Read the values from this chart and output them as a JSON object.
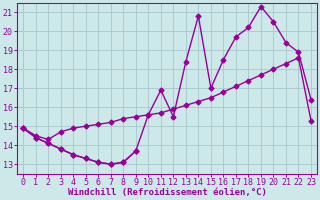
{
  "background_color": "#cce8e8",
  "grid_color": "#aacccc",
  "line_color": "#990099",
  "marker": "D",
  "markersize": 2.5,
  "linewidth": 1.0,
  "xlabel": "Windchill (Refroidissement éolien,°C)",
  "xlabel_fontsize": 6.5,
  "tick_fontsize": 6,
  "xlim": [
    -0.5,
    23.5
  ],
  "ylim": [
    12.5,
    21.5
  ],
  "yticks": [
    13,
    14,
    15,
    16,
    17,
    18,
    19,
    20,
    21
  ],
  "xticks": [
    0,
    1,
    2,
    3,
    4,
    5,
    6,
    7,
    8,
    9,
    10,
    11,
    12,
    13,
    14,
    15,
    16,
    17,
    18,
    19,
    20,
    21,
    22,
    23
  ],
  "line1_x": [
    0,
    1,
    2,
    3,
    4,
    5,
    6,
    7,
    8,
    9
  ],
  "line1_y": [
    14.9,
    14.4,
    14.1,
    13.8,
    13.5,
    13.3,
    13.1,
    13.0,
    13.1,
    13.7
  ],
  "line2_x": [
    0,
    1,
    2,
    3,
    4,
    5,
    6,
    7,
    8,
    9,
    10,
    11,
    12,
    13,
    14,
    15,
    16,
    17,
    18,
    19,
    20,
    21,
    22,
    23
  ],
  "line2_y": [
    14.9,
    14.5,
    14.3,
    14.7,
    14.9,
    15.0,
    15.1,
    15.2,
    15.4,
    15.5,
    15.6,
    15.7,
    15.9,
    16.1,
    16.3,
    16.5,
    16.8,
    17.1,
    17.4,
    17.7,
    18.0,
    18.3,
    18.6,
    15.3
  ],
  "line3_x": [
    0,
    1,
    2,
    3,
    4,
    5,
    6,
    7,
    8,
    9,
    10,
    11,
    12,
    13,
    14,
    15,
    16,
    17,
    18,
    19,
    20,
    21,
    22,
    23
  ],
  "line3_y": [
    14.9,
    14.4,
    14.1,
    13.8,
    13.5,
    13.3,
    13.1,
    13.0,
    13.1,
    13.7,
    15.6,
    16.9,
    15.5,
    18.4,
    20.8,
    17.0,
    18.5,
    19.7,
    20.2,
    21.3,
    20.5,
    19.4,
    18.9,
    16.4
  ]
}
